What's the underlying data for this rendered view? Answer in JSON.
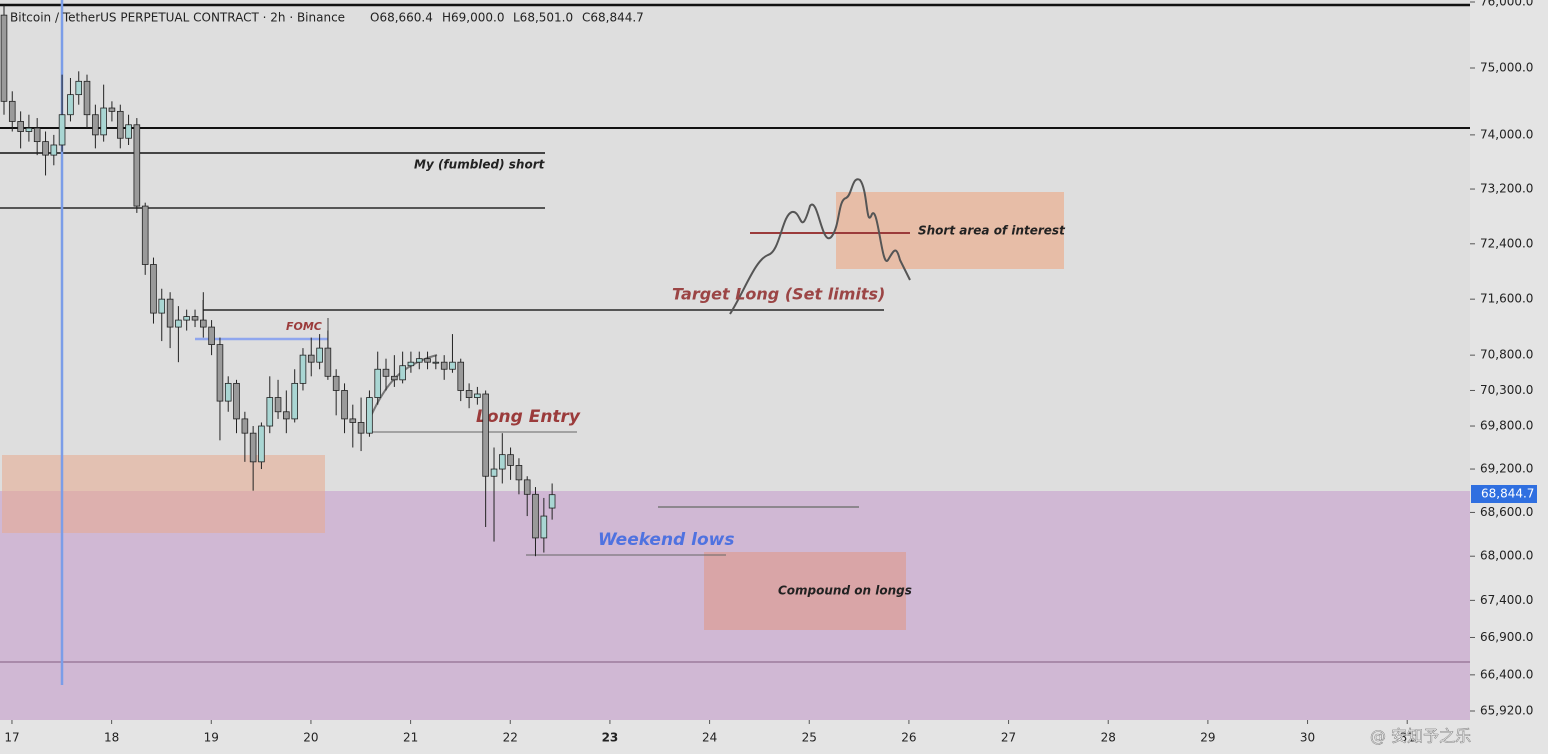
{
  "chart_data": {
    "type": "candlestick",
    "title": "Bitcoin / TetherUS PERPETUAL CONTRACT · 2h · Binance",
    "ohlc_header": [
      "O68,660.4",
      "H69,000.0",
      "L68,501.0",
      "C68,844.7"
    ],
    "watermark": "@ 安知予之乐",
    "last_label": "68,844.7",
    "annotations": [
      "My (fumbled) short",
      "FOMC",
      "Target Long (Set limits)",
      "Short area of interest",
      "Long Entry",
      "Weekend lows",
      "Compound on longs"
    ],
    "log_scale": true,
    "up_color": "#a9d6d3",
    "down_color": "#9a9a9a",
    "xlim": [
      16.88,
      31.63
    ],
    "xticks": [
      17,
      18,
      19,
      20,
      21,
      22,
      23,
      24,
      25,
      26,
      27,
      28,
      29,
      30,
      31
    ],
    "ylim": [
      65920,
      76000
    ],
    "yticks": [
      {
        "value": 76000,
        "label": "76,000.0"
      },
      {
        "value": 75000,
        "label": "75,000.0"
      },
      {
        "value": 74000,
        "label": "74,000.0"
      },
      {
        "value": 73200,
        "label": "73,200.0"
      },
      {
        "value": 72400,
        "label": "72,400.0"
      },
      {
        "value": 71600,
        "label": "71,600.0"
      },
      {
        "value": 70800,
        "label": "70,800.0"
      },
      {
        "value": 70300,
        "label": "70,300.0"
      },
      {
        "value": 69800,
        "label": "69,800.0"
      },
      {
        "value": 69200,
        "label": "69,200.0"
      },
      {
        "value": 68600,
        "label": "68,600.0"
      },
      {
        "value": 68000,
        "label": "68,000.0"
      },
      {
        "value": 67400,
        "label": "67,400.0"
      },
      {
        "value": 66900,
        "label": "66,900.0"
      },
      {
        "value": 66400,
        "label": "66,400.0"
      },
      {
        "value": 65920,
        "label": "65,920.0"
      }
    ],
    "x": [
      16.92,
      17.003,
      17.087,
      17.17,
      17.253,
      17.337,
      17.42,
      17.503,
      17.587,
      17.67,
      17.753,
      17.837,
      17.92,
      18.003,
      18.087,
      18.17,
      18.253,
      18.337,
      18.42,
      18.503,
      18.587,
      18.67,
      18.753,
      18.837,
      18.92,
      19.003,
      19.087,
      19.17,
      19.253,
      19.337,
      19.42,
      19.503,
      19.587,
      19.67,
      19.753,
      19.837,
      19.92,
      20.003,
      20.087,
      20.17,
      20.253,
      20.337,
      20.42,
      20.503,
      20.587,
      20.67,
      20.753,
      20.837,
      20.92,
      21.003,
      21.087,
      21.17,
      21.253,
      21.337,
      21.42,
      21.503,
      21.587,
      21.67,
      21.753,
      21.837,
      21.92,
      22.003,
      22.087,
      22.17,
      22.253,
      22.337,
      22.42
    ],
    "open": [
      75800,
      74500,
      74200,
      74050,
      74100,
      73900,
      73700,
      73850,
      74300,
      74600,
      74800,
      74300,
      74000,
      74400,
      74350,
      73950,
      74150,
      72950,
      72100,
      71400,
      71600,
      71200,
      71300,
      71350,
      71300,
      71200,
      70950,
      70150,
      70400,
      69900,
      69700,
      69300,
      69800,
      70200,
      70000,
      69900,
      70400,
      70800,
      70700,
      70900,
      70500,
      70300,
      69900,
      69850,
      69700,
      70200,
      70600,
      70500,
      70450,
      70650,
      70700,
      70750,
      70700,
      70700,
      70600,
      70700,
      70300,
      70200,
      70250,
      69100,
      69200,
      69400,
      69250,
      69050,
      68850,
      68250,
      68660.4
    ],
    "high": [
      75950,
      74650,
      74350,
      74300,
      74250,
      74050,
      74000,
      74900,
      74850,
      74950,
      74900,
      74450,
      74750,
      74500,
      74450,
      74300,
      74250,
      73000,
      72200,
      71750,
      71700,
      71500,
      71450,
      71450,
      71700,
      71300,
      71050,
      70500,
      70450,
      70000,
      69800,
      69850,
      70500,
      70450,
      70300,
      70600,
      70900,
      71050,
      71100,
      71150,
      70600,
      70400,
      70100,
      70200,
      70300,
      70850,
      70750,
      70800,
      70850,
      70850,
      70850,
      70850,
      70800,
      70800,
      71100,
      70750,
      70400,
      70350,
      70300,
      69500,
      69700,
      69500,
      69350,
      69100,
      68950,
      68800,
      69000
    ],
    "low": [
      74300,
      74050,
      73800,
      73900,
      73700,
      73400,
      73550,
      73750,
      74200,
      74450,
      74100,
      73800,
      73900,
      74200,
      73800,
      73850,
      72850,
      71950,
      71250,
      71000,
      70900,
      70700,
      71150,
      71200,
      71050,
      70800,
      69600,
      70000,
      69700,
      69300,
      68900,
      69200,
      69700,
      69900,
      69700,
      69850,
      70300,
      70500,
      70600,
      70450,
      69950,
      69700,
      69500,
      69450,
      69650,
      70100,
      70300,
      70350,
      70400,
      70550,
      70600,
      70600,
      70600,
      70450,
      70550,
      70150,
      70050,
      70100,
      68400,
      68200,
      69000,
      69050,
      68850,
      68550,
      68000,
      68050,
      68501
    ],
    "close": [
      74500,
      74200,
      74050,
      74100,
      73900,
      73700,
      73850,
      74300,
      74600,
      74800,
      74300,
      74000,
      74400,
      74350,
      73950,
      74150,
      72950,
      72100,
      71400,
      71600,
      71200,
      71300,
      71350,
      71300,
      71200,
      70950,
      70150,
      70400,
      69900,
      69700,
      69300,
      69800,
      70200,
      70000,
      69900,
      70400,
      70800,
      70700,
      70900,
      70500,
      70300,
      69900,
      69850,
      69700,
      70200,
      70600,
      70500,
      70450,
      70650,
      70700,
      70750,
      70700,
      70700,
      70600,
      70700,
      70300,
      70200,
      70250,
      69100,
      69200,
      69400,
      69250,
      69050,
      68850,
      68250,
      68550,
      68844.7
    ]
  }
}
